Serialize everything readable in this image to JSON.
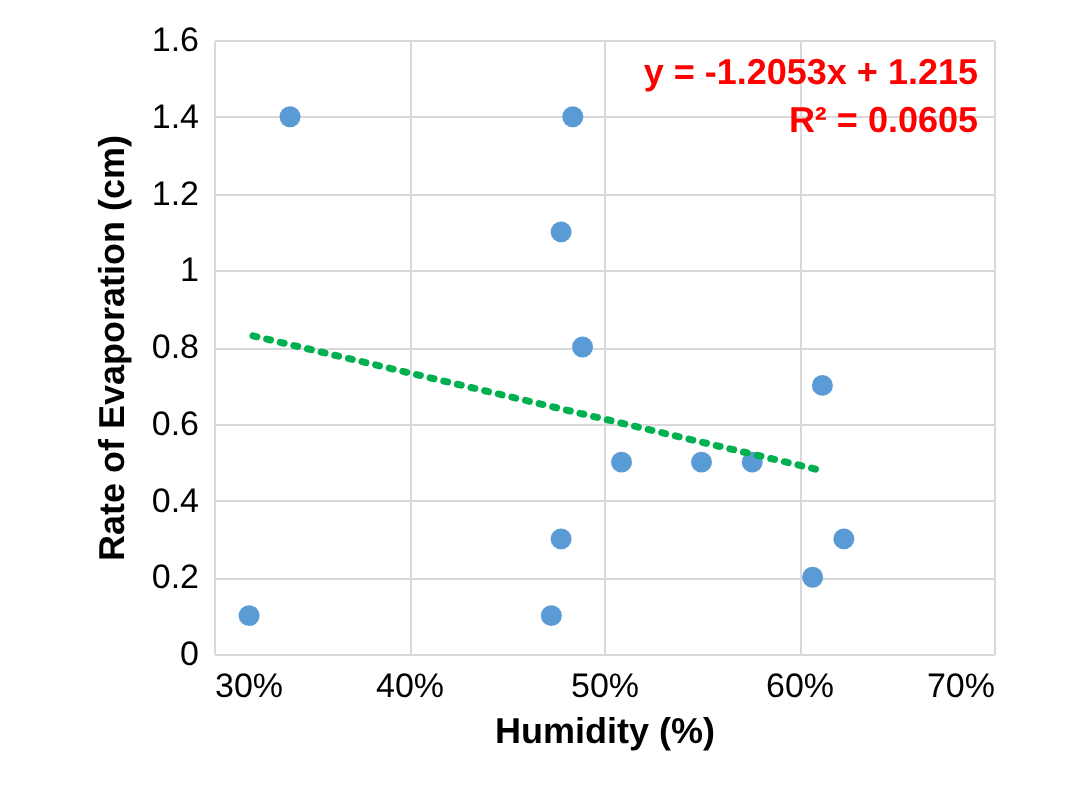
{
  "chart_data": {
    "type": "scatter",
    "xlabel": "Humidity (%)",
    "ylabel": "Rate of Evaporation (cm)",
    "xlim": [
      0.3,
      0.7
    ],
    "xticks": [
      {
        "value": 0.3,
        "label": "30%"
      },
      {
        "value": 0.4,
        "label": "40%"
      },
      {
        "value": 0.5,
        "label": "50%"
      },
      {
        "value": 0.6,
        "label": "60%"
      },
      {
        "value": 0.7,
        "label": "70%"
      }
    ],
    "ylim": [
      0,
      1.6
    ],
    "yticks": [
      0,
      0.2,
      0.4,
      0.6,
      0.8,
      1,
      1.2,
      1.4,
      1.6
    ],
    "grid": true,
    "legend": false,
    "marker": "circle",
    "series": [
      {
        "type": "scatter",
        "color": "#5b9bd5",
        "x": [
          0.318,
          0.339,
          0.473,
          0.478,
          0.478,
          0.484,
          0.489,
          0.509,
          0.55,
          0.576,
          0.607,
          0.612,
          0.623
        ],
        "values": [
          0.1,
          1.4,
          0.1,
          0.3,
          1.1,
          1.4,
          0.8,
          0.5,
          0.5,
          0.5,
          0.2,
          0.7,
          0.3
        ]
      },
      {
        "type": "line",
        "color": "#00b050",
        "line_style": "dotted",
        "marker": "none",
        "x": [
          0.32,
          0.61
        ],
        "values": [
          0.829,
          0.48
        ]
      }
    ],
    "annotations": [
      "y = -1.2053x + 1.215",
      "R² = 0.0605"
    ]
  }
}
